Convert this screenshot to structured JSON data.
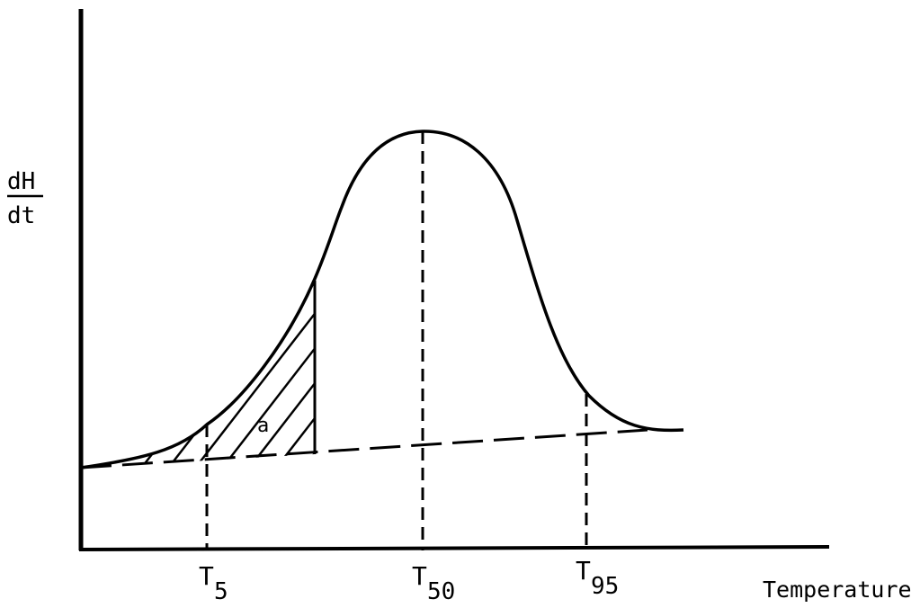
{
  "chart_data": {
    "type": "line",
    "title": "",
    "ylabel_top": "dH",
    "ylabel_bottom": "dt",
    "xlabel": "Temperature",
    "grid": false,
    "legend": "none",
    "ticks": [
      {
        "main": "T",
        "sub": "5"
      },
      {
        "main": "T",
        "sub": "50"
      },
      {
        "main": "T",
        "sub": "95"
      }
    ],
    "annotations": [
      {
        "text": "a"
      }
    ],
    "series": [
      {
        "style": "solid",
        "role": "curve"
      },
      {
        "style": "dashed",
        "role": "baseline"
      }
    ],
    "colors": {
      "ink": "#000000",
      "background": "#ffffff"
    }
  }
}
